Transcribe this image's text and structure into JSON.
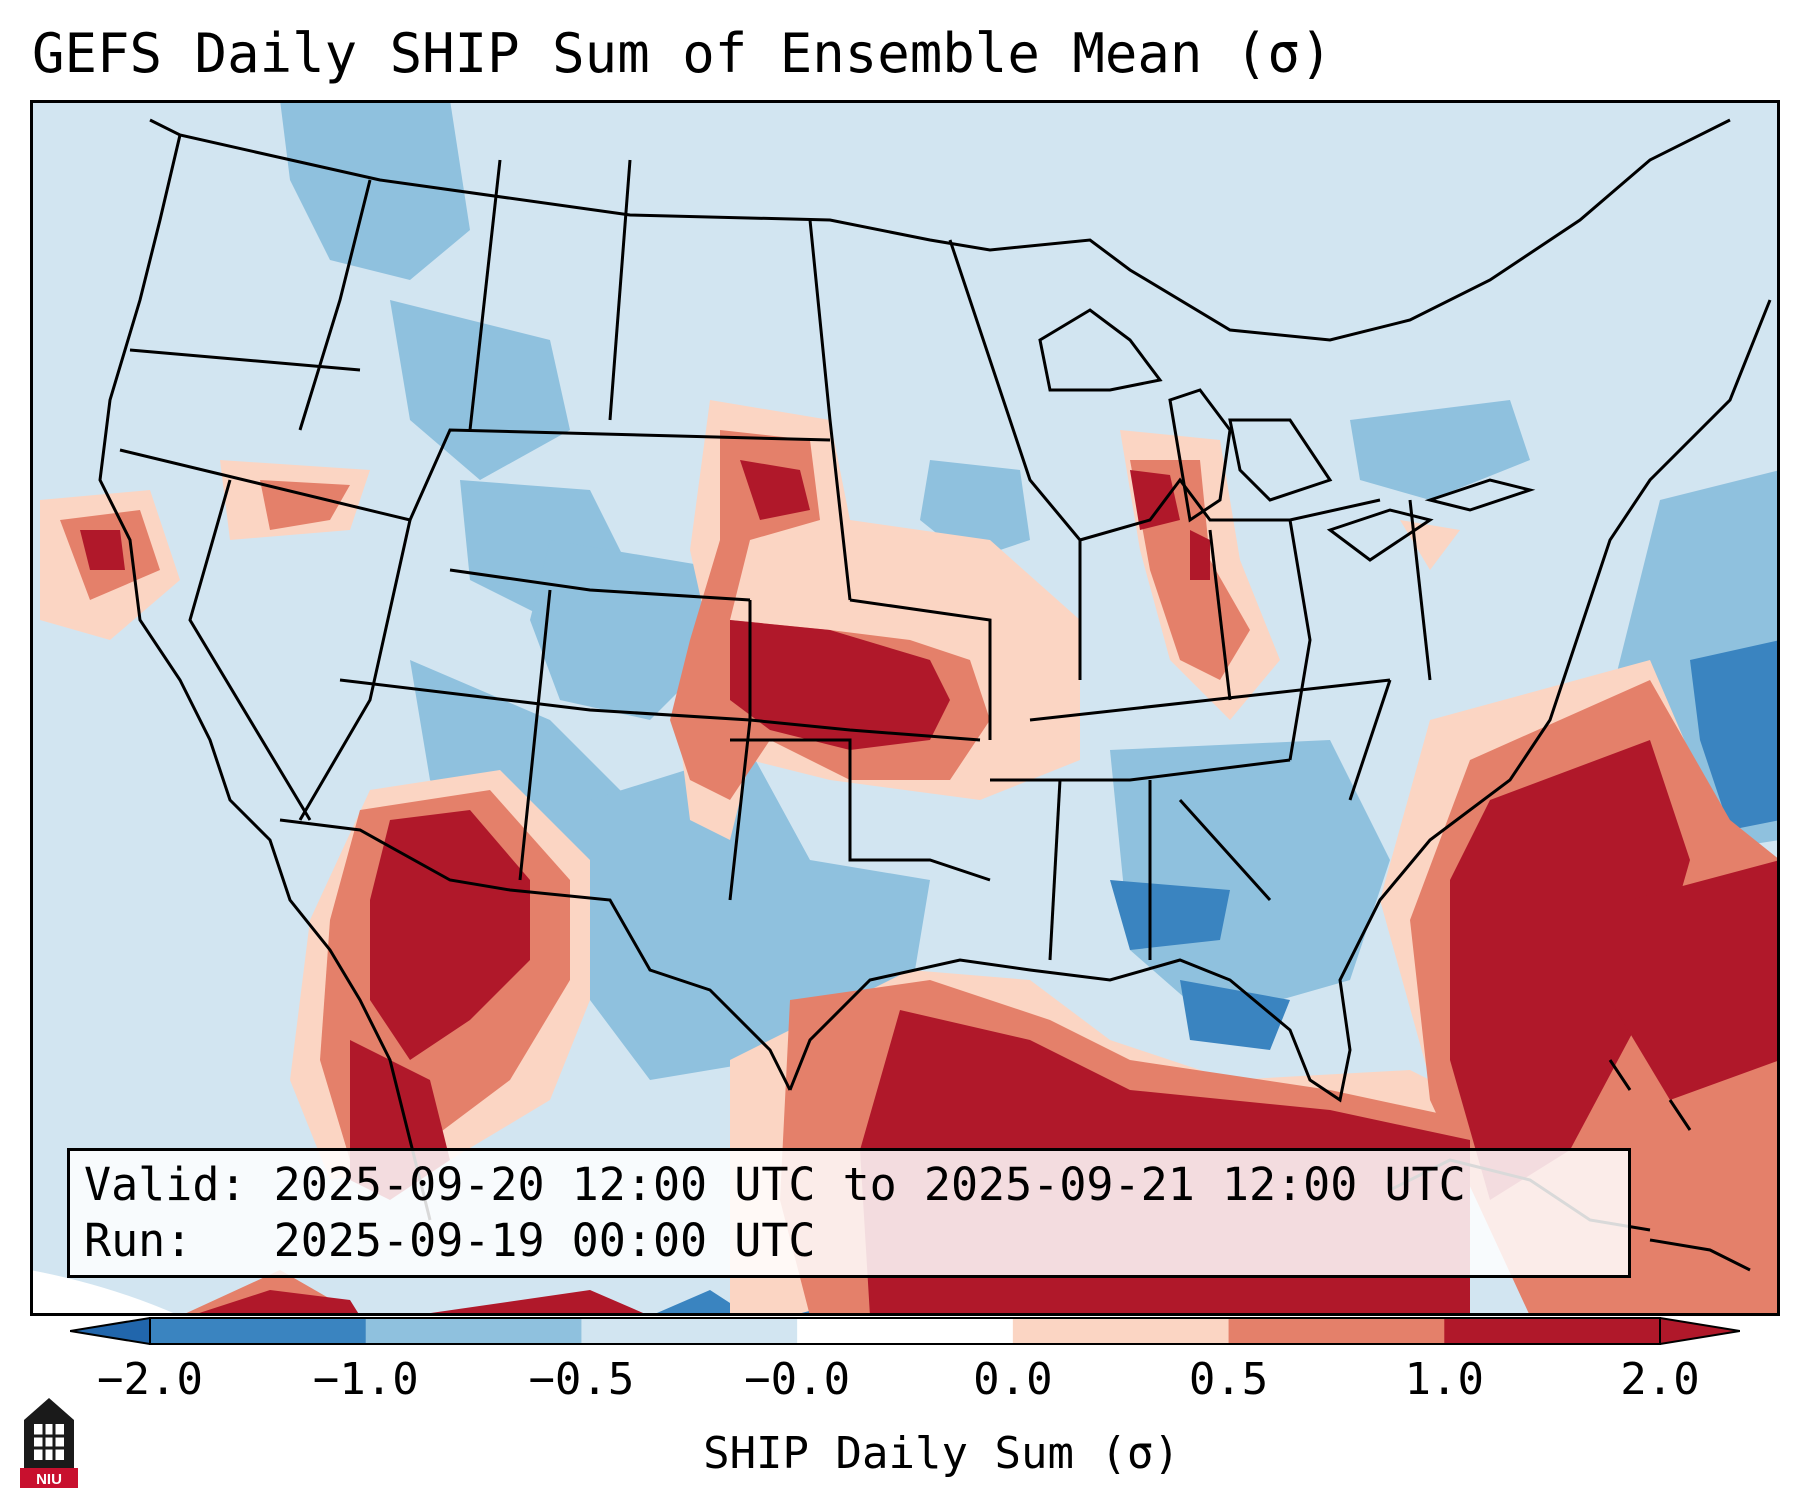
{
  "title": "GEFS Daily SHIP Sum of Ensemble Mean (σ)",
  "info": {
    "valid_label": "Valid:",
    "valid_value": "2025-09-20 12:00 UTC to 2025-09-21 12:00 UTC",
    "run_label": "Run:",
    "run_value": "2025-09-19 00:00 UTC"
  },
  "colorbar": {
    "label": "SHIP Daily Sum (σ)",
    "ticks": [
      "−2.0",
      "−1.0",
      "−0.5",
      "−0.0",
      "0.0",
      "0.5",
      "1.0",
      "2.0"
    ],
    "colors": [
      "#3a84c0",
      "#8fc1de",
      "#d2e5f1",
      "#ffffff",
      "#fbd5c3",
      "#e4806a",
      "#b0182a"
    ],
    "extend": "both"
  },
  "logo": {
    "text": "NIU"
  }
}
